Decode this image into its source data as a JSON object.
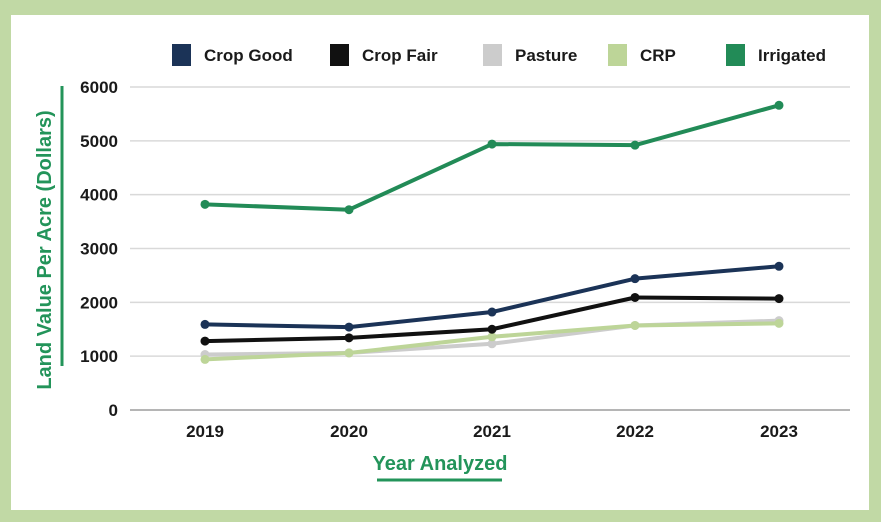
{
  "chart_data": {
    "type": "line",
    "title": "",
    "xlabel": "Year Analyzed",
    "ylabel": "Land Value Per Acre (Dollars)",
    "categories": [
      "2019",
      "2020",
      "2021",
      "2022",
      "2023"
    ],
    "yticks": [
      "0",
      "1000",
      "2000",
      "3000",
      "4000",
      "5000",
      "6000"
    ],
    "ylim": [
      0,
      6000
    ],
    "grid": true,
    "legend_position": "top",
    "series": [
      {
        "name": "Crop Good",
        "color": "#1b3357",
        "values": [
          1590,
          1540,
          1820,
          2440,
          2670
        ]
      },
      {
        "name": "Crop Fair",
        "color": "#111111",
        "values": [
          1280,
          1340,
          1500,
          2090,
          2070
        ]
      },
      {
        "name": "Pasture",
        "color": "#cccccc",
        "values": [
          1030,
          1060,
          1230,
          1570,
          1660
        ]
      },
      {
        "name": "CRP",
        "color": "#bdd598",
        "values": [
          940,
          1060,
          1360,
          1570,
          1610
        ]
      },
      {
        "name": "Irrigated",
        "color": "#228b57",
        "values": [
          3820,
          3720,
          4940,
          4920,
          5660
        ]
      }
    ]
  },
  "colors": {
    "frame": "#c1d9a5",
    "gridline": "#d9d9d9",
    "axis_title": "#23945a"
  }
}
